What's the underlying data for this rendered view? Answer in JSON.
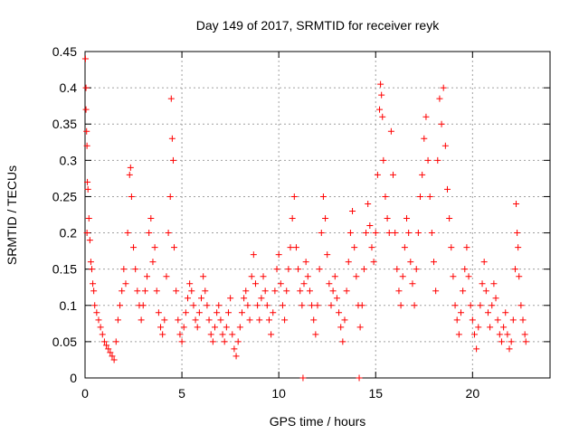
{
  "chart_data": {
    "type": "scatter",
    "title": "Day 149 of 2017, SRMTID for receiver reyk",
    "xlabel": "GPS time / hours",
    "ylabel": "SRMTID / TECUs",
    "xlim": [
      0,
      24
    ],
    "ylim": [
      0,
      0.45
    ],
    "x_ticks": [
      0,
      5,
      10,
      15,
      20
    ],
    "x_tick_labels": [
      "0",
      "5",
      "10",
      "15",
      "20"
    ],
    "y_ticks": [
      0,
      0.05,
      0.1,
      0.15,
      0.2,
      0.25,
      0.3,
      0.35,
      0.4,
      0.45
    ],
    "y_tick_labels": [
      "0",
      "0.05",
      "0.1",
      "0.15",
      "0.2",
      "0.25",
      "0.3",
      "0.35",
      "0.4",
      "0.45"
    ],
    "grid": true,
    "marker": "+",
    "series": [
      {
        "name": "SRMTID",
        "color": "#ff0000",
        "points": [
          [
            0.02,
            0.44
          ],
          [
            0.05,
            0.4
          ],
          [
            0.05,
            0.37
          ],
          [
            0.08,
            0.34
          ],
          [
            0.1,
            0.32
          ],
          [
            0.12,
            0.27
          ],
          [
            0.15,
            0.26
          ],
          [
            0.2,
            0.22
          ],
          [
            0.1,
            0.2
          ],
          [
            0.25,
            0.19
          ],
          [
            0.3,
            0.16
          ],
          [
            0.35,
            0.15
          ],
          [
            0.4,
            0.13
          ],
          [
            0.45,
            0.12
          ],
          [
            0.5,
            0.1
          ],
          [
            0.6,
            0.09
          ],
          [
            0.7,
            0.08
          ],
          [
            0.8,
            0.07
          ],
          [
            0.9,
            0.06
          ],
          [
            1.0,
            0.05
          ],
          [
            1.1,
            0.045
          ],
          [
            1.2,
            0.04
          ],
          [
            1.3,
            0.035
          ],
          [
            1.4,
            0.03
          ],
          [
            1.5,
            0.025
          ],
          [
            1.6,
            0.05
          ],
          [
            1.7,
            0.08
          ],
          [
            1.8,
            0.1
          ],
          [
            1.9,
            0.12
          ],
          [
            2.0,
            0.15
          ],
          [
            2.1,
            0.13
          ],
          [
            2.2,
            0.2
          ],
          [
            2.3,
            0.28
          ],
          [
            2.35,
            0.29
          ],
          [
            2.4,
            0.25
          ],
          [
            2.5,
            0.18
          ],
          [
            2.6,
            0.15
          ],
          [
            2.7,
            0.12
          ],
          [
            2.8,
            0.1
          ],
          [
            2.9,
            0.08
          ],
          [
            3.0,
            0.1
          ],
          [
            3.1,
            0.12
          ],
          [
            3.2,
            0.14
          ],
          [
            3.3,
            0.2
          ],
          [
            3.4,
            0.22
          ],
          [
            3.5,
            0.16
          ],
          [
            3.6,
            0.18
          ],
          [
            3.7,
            0.12
          ],
          [
            3.8,
            0.09
          ],
          [
            3.9,
            0.07
          ],
          [
            4.0,
            0.06
          ],
          [
            4.1,
            0.08
          ],
          [
            4.2,
            0.14
          ],
          [
            4.3,
            0.2
          ],
          [
            4.4,
            0.25
          ],
          [
            4.45,
            0.385
          ],
          [
            4.5,
            0.33
          ],
          [
            4.55,
            0.3
          ],
          [
            4.6,
            0.18
          ],
          [
            4.7,
            0.12
          ],
          [
            4.8,
            0.08
          ],
          [
            4.9,
            0.06
          ],
          [
            5.0,
            0.05
          ],
          [
            5.1,
            0.07
          ],
          [
            5.2,
            0.09
          ],
          [
            5.3,
            0.11
          ],
          [
            5.4,
            0.13
          ],
          [
            5.5,
            0.12
          ],
          [
            5.6,
            0.1
          ],
          [
            5.7,
            0.08
          ],
          [
            5.8,
            0.07
          ],
          [
            5.9,
            0.09
          ],
          [
            6.0,
            0.11
          ],
          [
            6.1,
            0.14
          ],
          [
            6.2,
            0.12
          ],
          [
            6.3,
            0.1
          ],
          [
            6.4,
            0.08
          ],
          [
            6.5,
            0.06
          ],
          [
            6.6,
            0.05
          ],
          [
            6.7,
            0.07
          ],
          [
            6.8,
            0.09
          ],
          [
            6.9,
            0.1
          ],
          [
            7.0,
            0.08
          ],
          [
            7.1,
            0.06
          ],
          [
            7.2,
            0.05
          ],
          [
            7.3,
            0.07
          ],
          [
            7.4,
            0.09
          ],
          [
            7.5,
            0.11
          ],
          [
            7.6,
            0.06
          ],
          [
            7.7,
            0.04
          ],
          [
            7.8,
            0.03
          ],
          [
            7.9,
            0.05
          ],
          [
            8.0,
            0.07
          ],
          [
            8.1,
            0.09
          ],
          [
            8.2,
            0.11
          ],
          [
            8.3,
            0.12
          ],
          [
            8.4,
            0.1
          ],
          [
            8.5,
            0.08
          ],
          [
            8.6,
            0.14
          ],
          [
            8.7,
            0.17
          ],
          [
            8.8,
            0.13
          ],
          [
            8.9,
            0.1
          ],
          [
            9.0,
            0.08
          ],
          [
            9.1,
            0.11
          ],
          [
            9.2,
            0.14
          ],
          [
            9.3,
            0.12
          ],
          [
            9.4,
            0.1
          ],
          [
            9.5,
            0.08
          ],
          [
            9.6,
            0.06
          ],
          [
            9.7,
            0.09
          ],
          [
            9.8,
            0.12
          ],
          [
            9.9,
            0.15
          ],
          [
            10.0,
            0.17
          ],
          [
            10.1,
            0.13
          ],
          [
            10.2,
            0.1
          ],
          [
            10.3,
            0.08
          ],
          [
            10.4,
            0.12
          ],
          [
            10.5,
            0.15
          ],
          [
            10.6,
            0.18
          ],
          [
            10.7,
            0.22
          ],
          [
            10.8,
            0.25
          ],
          [
            10.9,
            0.18
          ],
          [
            11.0,
            0.15
          ],
          [
            11.1,
            0.12
          ],
          [
            11.2,
            0.1
          ],
          [
            11.25,
            0.0
          ],
          [
            11.3,
            0.13
          ],
          [
            11.4,
            0.16
          ],
          [
            11.5,
            0.14
          ],
          [
            11.6,
            0.12
          ],
          [
            11.7,
            0.1
          ],
          [
            11.8,
            0.08
          ],
          [
            11.9,
            0.06
          ],
          [
            12.0,
            0.1
          ],
          [
            12.1,
            0.15
          ],
          [
            12.2,
            0.2
          ],
          [
            12.3,
            0.25
          ],
          [
            12.4,
            0.22
          ],
          [
            12.5,
            0.17
          ],
          [
            12.6,
            0.13
          ],
          [
            12.7,
            0.1
          ],
          [
            12.8,
            0.12
          ],
          [
            12.9,
            0.14
          ],
          [
            13.0,
            0.11
          ],
          [
            13.1,
            0.09
          ],
          [
            13.2,
            0.07
          ],
          [
            13.3,
            0.05
          ],
          [
            13.4,
            0.08
          ],
          [
            13.5,
            0.12
          ],
          [
            13.6,
            0.16
          ],
          [
            13.7,
            0.2
          ],
          [
            13.8,
            0.23
          ],
          [
            13.9,
            0.18
          ],
          [
            14.0,
            0.14
          ],
          [
            14.1,
            0.1
          ],
          [
            14.15,
            0.0
          ],
          [
            14.2,
            0.07
          ],
          [
            14.3,
            0.1
          ],
          [
            14.4,
            0.15
          ],
          [
            14.5,
            0.2
          ],
          [
            14.6,
            0.24
          ],
          [
            14.7,
            0.21
          ],
          [
            14.8,
            0.18
          ],
          [
            14.9,
            0.16
          ],
          [
            15.0,
            0.2
          ],
          [
            15.1,
            0.28
          ],
          [
            15.2,
            0.37
          ],
          [
            15.25,
            0.405
          ],
          [
            15.3,
            0.39
          ],
          [
            15.35,
            0.36
          ],
          [
            15.4,
            0.3
          ],
          [
            15.5,
            0.25
          ],
          [
            15.6,
            0.22
          ],
          [
            15.7,
            0.2
          ],
          [
            15.8,
            0.34
          ],
          [
            15.9,
            0.28
          ],
          [
            16.0,
            0.2
          ],
          [
            16.1,
            0.15
          ],
          [
            16.2,
            0.12
          ],
          [
            16.3,
            0.1
          ],
          [
            16.4,
            0.14
          ],
          [
            16.5,
            0.18
          ],
          [
            16.6,
            0.22
          ],
          [
            16.7,
            0.2
          ],
          [
            16.8,
            0.16
          ],
          [
            16.9,
            0.13
          ],
          [
            17.0,
            0.1
          ],
          [
            17.1,
            0.15
          ],
          [
            17.2,
            0.2
          ],
          [
            17.3,
            0.25
          ],
          [
            17.4,
            0.28
          ],
          [
            17.5,
            0.33
          ],
          [
            17.6,
            0.36
          ],
          [
            17.7,
            0.3
          ],
          [
            17.8,
            0.25
          ],
          [
            17.9,
            0.2
          ],
          [
            18.0,
            0.16
          ],
          [
            18.1,
            0.12
          ],
          [
            18.2,
            0.3
          ],
          [
            18.3,
            0.385
          ],
          [
            18.4,
            0.35
          ],
          [
            18.5,
            0.4
          ],
          [
            18.6,
            0.32
          ],
          [
            18.7,
            0.26
          ],
          [
            18.8,
            0.22
          ],
          [
            18.9,
            0.18
          ],
          [
            19.0,
            0.14
          ],
          [
            19.1,
            0.1
          ],
          [
            19.2,
            0.08
          ],
          [
            19.3,
            0.06
          ],
          [
            19.4,
            0.09
          ],
          [
            19.5,
            0.12
          ],
          [
            19.6,
            0.15
          ],
          [
            19.7,
            0.18
          ],
          [
            19.8,
            0.14
          ],
          [
            19.9,
            0.1
          ],
          [
            20.0,
            0.08
          ],
          [
            20.1,
            0.06
          ],
          [
            20.2,
            0.04
          ],
          [
            20.3,
            0.07
          ],
          [
            20.4,
            0.1
          ],
          [
            20.5,
            0.13
          ],
          [
            20.6,
            0.16
          ],
          [
            20.7,
            0.12
          ],
          [
            20.8,
            0.09
          ],
          [
            20.9,
            0.07
          ],
          [
            21.0,
            0.1
          ],
          [
            21.1,
            0.13
          ],
          [
            21.2,
            0.11
          ],
          [
            21.3,
            0.08
          ],
          [
            21.4,
            0.06
          ],
          [
            21.5,
            0.05
          ],
          [
            21.6,
            0.07
          ],
          [
            21.7,
            0.09
          ],
          [
            21.8,
            0.06
          ],
          [
            21.9,
            0.04
          ],
          [
            22.0,
            0.05
          ],
          [
            22.1,
            0.08
          ],
          [
            22.2,
            0.15
          ],
          [
            22.25,
            0.24
          ],
          [
            22.3,
            0.2
          ],
          [
            22.35,
            0.18
          ],
          [
            22.4,
            0.14
          ],
          [
            22.5,
            0.1
          ],
          [
            22.6,
            0.08
          ],
          [
            22.7,
            0.06
          ],
          [
            22.75,
            0.05
          ]
        ]
      }
    ]
  }
}
